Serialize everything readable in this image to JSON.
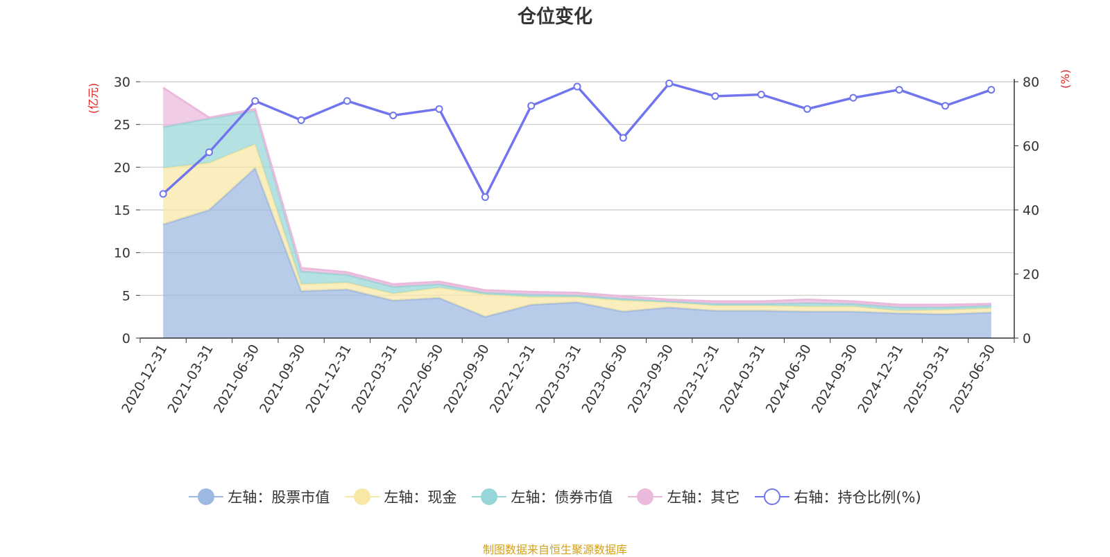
{
  "chart_data": {
    "type": "area",
    "title": "仓位变化",
    "categories": [
      "2020-12-31",
      "2021-03-31",
      "2021-06-30",
      "2021-09-30",
      "2021-12-31",
      "2022-03-31",
      "2022-06-30",
      "2022-09-30",
      "2022-12-31",
      "2023-03-31",
      "2023-06-30",
      "2023-09-30",
      "2023-12-31",
      "2024-03-31",
      "2024-06-30",
      "2024-09-30",
      "2024-12-31",
      "2025-03-31",
      "2025-06-30"
    ],
    "y_left": {
      "label": "(亿元)",
      "ylim": [
        0,
        30
      ],
      "ticks": [
        0,
        5,
        10,
        15,
        20,
        25,
        30
      ]
    },
    "y_right": {
      "label": "(%)",
      "ylim": [
        0,
        80
      ],
      "ticks": [
        0,
        20,
        40,
        60,
        80
      ]
    },
    "grid": true,
    "legend_position": "bottom",
    "series": [
      {
        "name": "左轴：股票市值",
        "axis": "left",
        "kind": "area",
        "color": "#9db8e1",
        "values": [
          13.3,
          15.0,
          19.9,
          5.5,
          5.7,
          4.4,
          4.7,
          2.5,
          3.9,
          4.2,
          3.1,
          3.6,
          3.2,
          3.2,
          3.1,
          3.1,
          2.9,
          2.8,
          3.0
        ]
      },
      {
        "name": "左轴：现金",
        "axis": "left",
        "kind": "area",
        "color": "#f8e8a6",
        "values": [
          6.6,
          5.5,
          2.8,
          0.8,
          0.8,
          0.8,
          1.2,
          2.6,
          0.9,
          0.6,
          1.3,
          0.6,
          0.6,
          0.6,
          0.6,
          0.6,
          0.3,
          0.5,
          0.5
        ]
      },
      {
        "name": "左轴：债券市值",
        "axis": "left",
        "kind": "area",
        "color": "#97d6d7",
        "values": [
          4.8,
          5.2,
          3.9,
          1.5,
          0.9,
          0.8,
          0.4,
          0.2,
          0.3,
          0.2,
          0.2,
          0.1,
          0.2,
          0.2,
          0.4,
          0.3,
          0.4,
          0.3,
          0.3
        ]
      },
      {
        "name": "左轴：其它",
        "axis": "left",
        "kind": "area",
        "color": "#eab9dc",
        "values": [
          4.6,
          0.1,
          0.2,
          0.4,
          0.3,
          0.3,
          0.3,
          0.3,
          0.3,
          0.3,
          0.3,
          0.2,
          0.3,
          0.3,
          0.4,
          0.3,
          0.3,
          0.3,
          0.2
        ]
      },
      {
        "name": "右轴：持仓比例(%)",
        "axis": "right",
        "kind": "line",
        "color": "#7075ee",
        "values": [
          45.0,
          58.0,
          74.0,
          68.0,
          74.0,
          69.5,
          71.5,
          44.0,
          72.5,
          78.5,
          62.5,
          79.5,
          75.5,
          76.0,
          71.5,
          75.0,
          77.5,
          72.5,
          77.5
        ]
      }
    ],
    "source": "制图数据来自恒生聚源数据库"
  }
}
